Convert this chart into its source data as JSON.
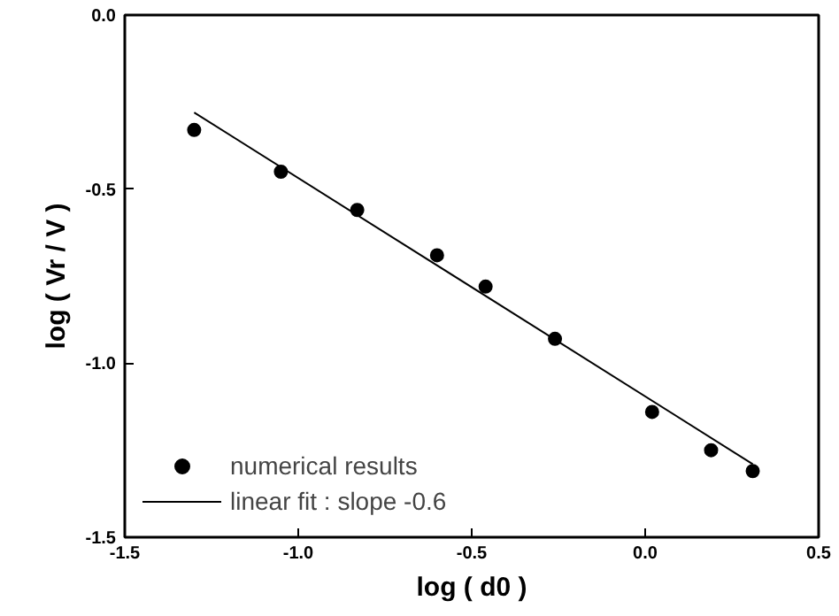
{
  "chart_data": {
    "type": "scatter",
    "xlabel": "log ( d0 )",
    "ylabel": "log ( Vr / V )",
    "xlim": [
      -1.5,
      0.5
    ],
    "ylim": [
      -1.5,
      0.0
    ],
    "xticks": [
      {
        "value": -1.5,
        "label": "-1.5"
      },
      {
        "value": -1.0,
        "label": "-1.0"
      },
      {
        "value": -0.5,
        "label": "-0.5"
      },
      {
        "value": 0.0,
        "label": "0.0"
      },
      {
        "value": 0.5,
        "label": "0.5"
      }
    ],
    "yticks": [
      {
        "value": -1.5,
        "label": "-1.5"
      },
      {
        "value": -1.0,
        "label": "-1.0"
      },
      {
        "value": -0.5,
        "label": "-0.5"
      },
      {
        "value": 0.0,
        "label": "0.0"
      }
    ],
    "grid": false,
    "legend": "bottom left",
    "series": [
      {
        "name": "numerical results",
        "marker": "circle",
        "color": "#000000",
        "x": [
          -1.3,
          -1.05,
          -0.83,
          -0.6,
          -0.46,
          -0.26,
          0.02,
          0.19,
          0.31
        ],
        "values": [
          -0.33,
          -0.45,
          -0.56,
          -0.69,
          -0.78,
          -0.93,
          -1.14,
          -1.25,
          -1.31
        ]
      },
      {
        "name": "linear fit : slope -0.6",
        "type": "line",
        "line_style": "solid",
        "color": "#000000",
        "x": [
          -1.3,
          0.31
        ],
        "values": [
          -0.28,
          -1.29
        ]
      }
    ]
  }
}
